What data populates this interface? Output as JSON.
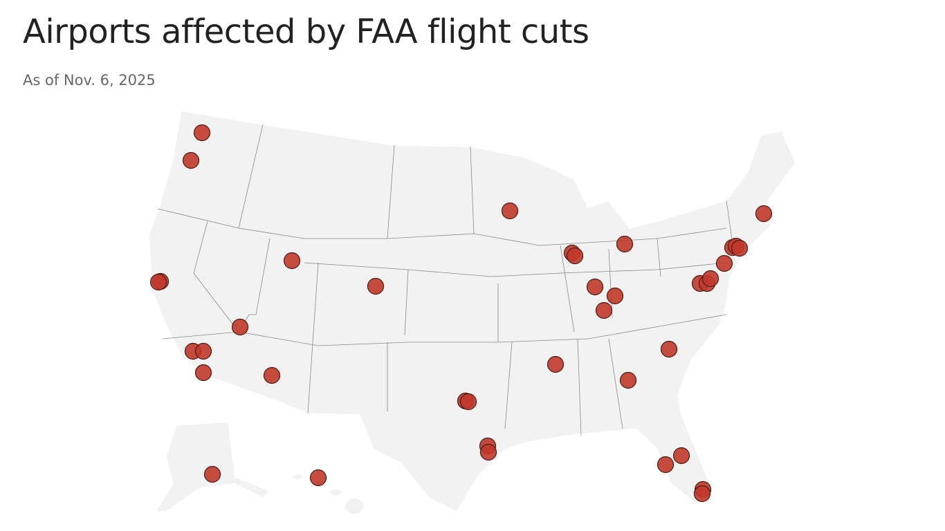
{
  "header": {
    "title": "Airports affected by FAA flight cuts",
    "subtitle": "As of Nov. 6, 2025"
  }
}
